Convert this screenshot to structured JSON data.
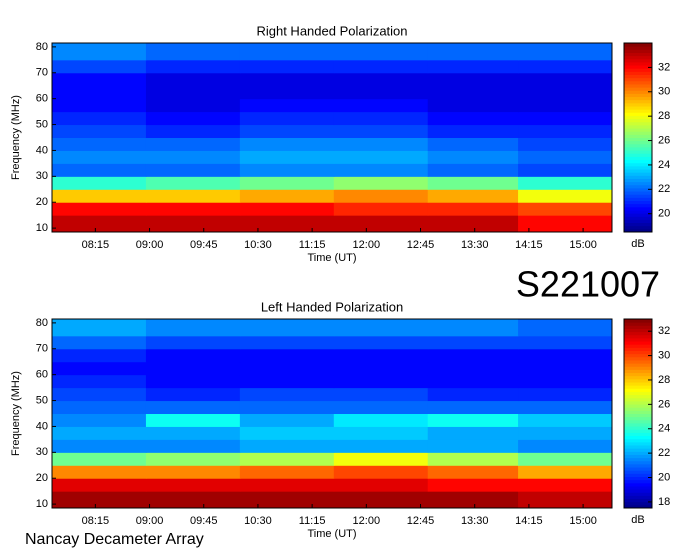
{
  "chart_data": [
    {
      "type": "heatmap",
      "title": "Right Handed Polarization",
      "xlabel": "Time (UT)",
      "ylabel": "Frequency (MHz)",
      "colorbar_label": "dB",
      "colormap": "jet",
      "xlim": [
        7.65,
        15.4
      ],
      "ylim": [
        8.5,
        81.5
      ],
      "clim": [
        18.5,
        34
      ],
      "xticks": [
        {
          "value": 8.25,
          "label": "08:15"
        },
        {
          "value": 9,
          "label": "09:00"
        },
        {
          "value": 9.75,
          "label": "09:45"
        },
        {
          "value": 10.5,
          "label": "10:30"
        },
        {
          "value": 11.25,
          "label": "11:15"
        },
        {
          "value": 12,
          "label": "12:00"
        },
        {
          "value": 12.75,
          "label": "12:45"
        },
        {
          "value": 13.5,
          "label": "13:30"
        },
        {
          "value": 14.25,
          "label": "14:15"
        },
        {
          "value": 15,
          "label": "15:00"
        }
      ],
      "yticks": [
        10,
        20,
        30,
        40,
        50,
        60,
        70,
        80
      ],
      "cticks": [
        20,
        22,
        24,
        26,
        28,
        30,
        32
      ],
      "x_edges": [
        7.65,
        8.95,
        10.25,
        11.55,
        12.85,
        14.1,
        15.4
      ],
      "y_edges": [
        8.5,
        15,
        20,
        25,
        30,
        35,
        40,
        45,
        50,
        55,
        60,
        65,
        70,
        75,
        81.5
      ],
      "z": [
        [
          33,
          33,
          33,
          33,
          33,
          32
        ],
        [
          32,
          32,
          32,
          31.5,
          31.5,
          31
        ],
        [
          29,
          29,
          29.5,
          30,
          29.5,
          28
        ],
        [
          25,
          25.5,
          26,
          26.5,
          26,
          25
        ],
        [
          22,
          22,
          22.5,
          22.5,
          22,
          21.5
        ],
        [
          22.5,
          22.5,
          23,
          23,
          22.5,
          22
        ],
        [
          22,
          22,
          22.5,
          22.5,
          22,
          21.5
        ],
        [
          21.5,
          21,
          21.5,
          21.5,
          21,
          21
        ],
        [
          21,
          20.5,
          21,
          21,
          20.5,
          20.5
        ],
        [
          20.5,
          20,
          20.5,
          20.5,
          20,
          20
        ],
        [
          20.5,
          20,
          20,
          20,
          20,
          20
        ],
        [
          20.5,
          20,
          20,
          20,
          20,
          20
        ],
        [
          21.5,
          21,
          21,
          21,
          21,
          21
        ],
        [
          22.5,
          22,
          22,
          22,
          22,
          22
        ]
      ]
    },
    {
      "type": "heatmap",
      "title": "Left Handed Polarization",
      "xlabel": "Time (UT)",
      "ylabel": "Frequency (MHz)",
      "colorbar_label": "dB",
      "colormap": "jet",
      "xlim": [
        7.65,
        15.4
      ],
      "ylim": [
        8.5,
        81.5
      ],
      "clim": [
        17.5,
        33
      ],
      "xticks": [
        {
          "value": 8.25,
          "label": "08:15"
        },
        {
          "value": 9,
          "label": "09:00"
        },
        {
          "value": 9.75,
          "label": "09:45"
        },
        {
          "value": 10.5,
          "label": "10:30"
        },
        {
          "value": 11.25,
          "label": "11:15"
        },
        {
          "value": 12,
          "label": "12:00"
        },
        {
          "value": 12.75,
          "label": "12:45"
        },
        {
          "value": 13.5,
          "label": "13:30"
        },
        {
          "value": 14.25,
          "label": "14:15"
        },
        {
          "value": 15,
          "label": "15:00"
        }
      ],
      "yticks": [
        10,
        20,
        30,
        40,
        50,
        60,
        70,
        80
      ],
      "cticks": [
        18,
        20,
        22,
        24,
        26,
        28,
        30,
        32
      ],
      "x_edges": [
        7.65,
        8.95,
        10.25,
        11.55,
        12.85,
        14.1,
        15.4
      ],
      "y_edges": [
        8.5,
        15,
        20,
        25,
        30,
        35,
        40,
        45,
        50,
        55,
        60,
        65,
        70,
        75,
        81.5
      ],
      "z": [
        [
          32.5,
          32.5,
          32.5,
          32.5,
          32.5,
          32
        ],
        [
          31.5,
          31.5,
          31.5,
          31.5,
          31,
          31
        ],
        [
          29,
          29,
          29.5,
          30,
          29.5,
          28.5
        ],
        [
          25,
          25.5,
          26,
          27,
          26,
          25
        ],
        [
          21.5,
          21.5,
          22,
          22,
          22,
          21.5
        ],
        [
          22,
          22,
          22.5,
          22.5,
          22,
          22
        ],
        [
          21.5,
          23.5,
          22,
          23,
          23.5,
          22.5
        ],
        [
          21,
          21,
          21,
          21,
          21,
          21
        ],
        [
          20.5,
          20,
          20.5,
          20.5,
          20,
          20
        ],
        [
          20,
          19.5,
          19.5,
          19.5,
          19.5,
          19.5
        ],
        [
          19.5,
          19.5,
          19.5,
          19.5,
          19.5,
          19.5
        ],
        [
          20,
          19.5,
          19.5,
          19.5,
          19.5,
          19.5
        ],
        [
          21,
          20.5,
          20.5,
          20.5,
          20.5,
          20.5
        ],
        [
          22,
          21.5,
          21.5,
          21.5,
          21.5,
          21
        ]
      ]
    }
  ],
  "label": "S221007",
  "footer": "Nancay Decameter Array"
}
